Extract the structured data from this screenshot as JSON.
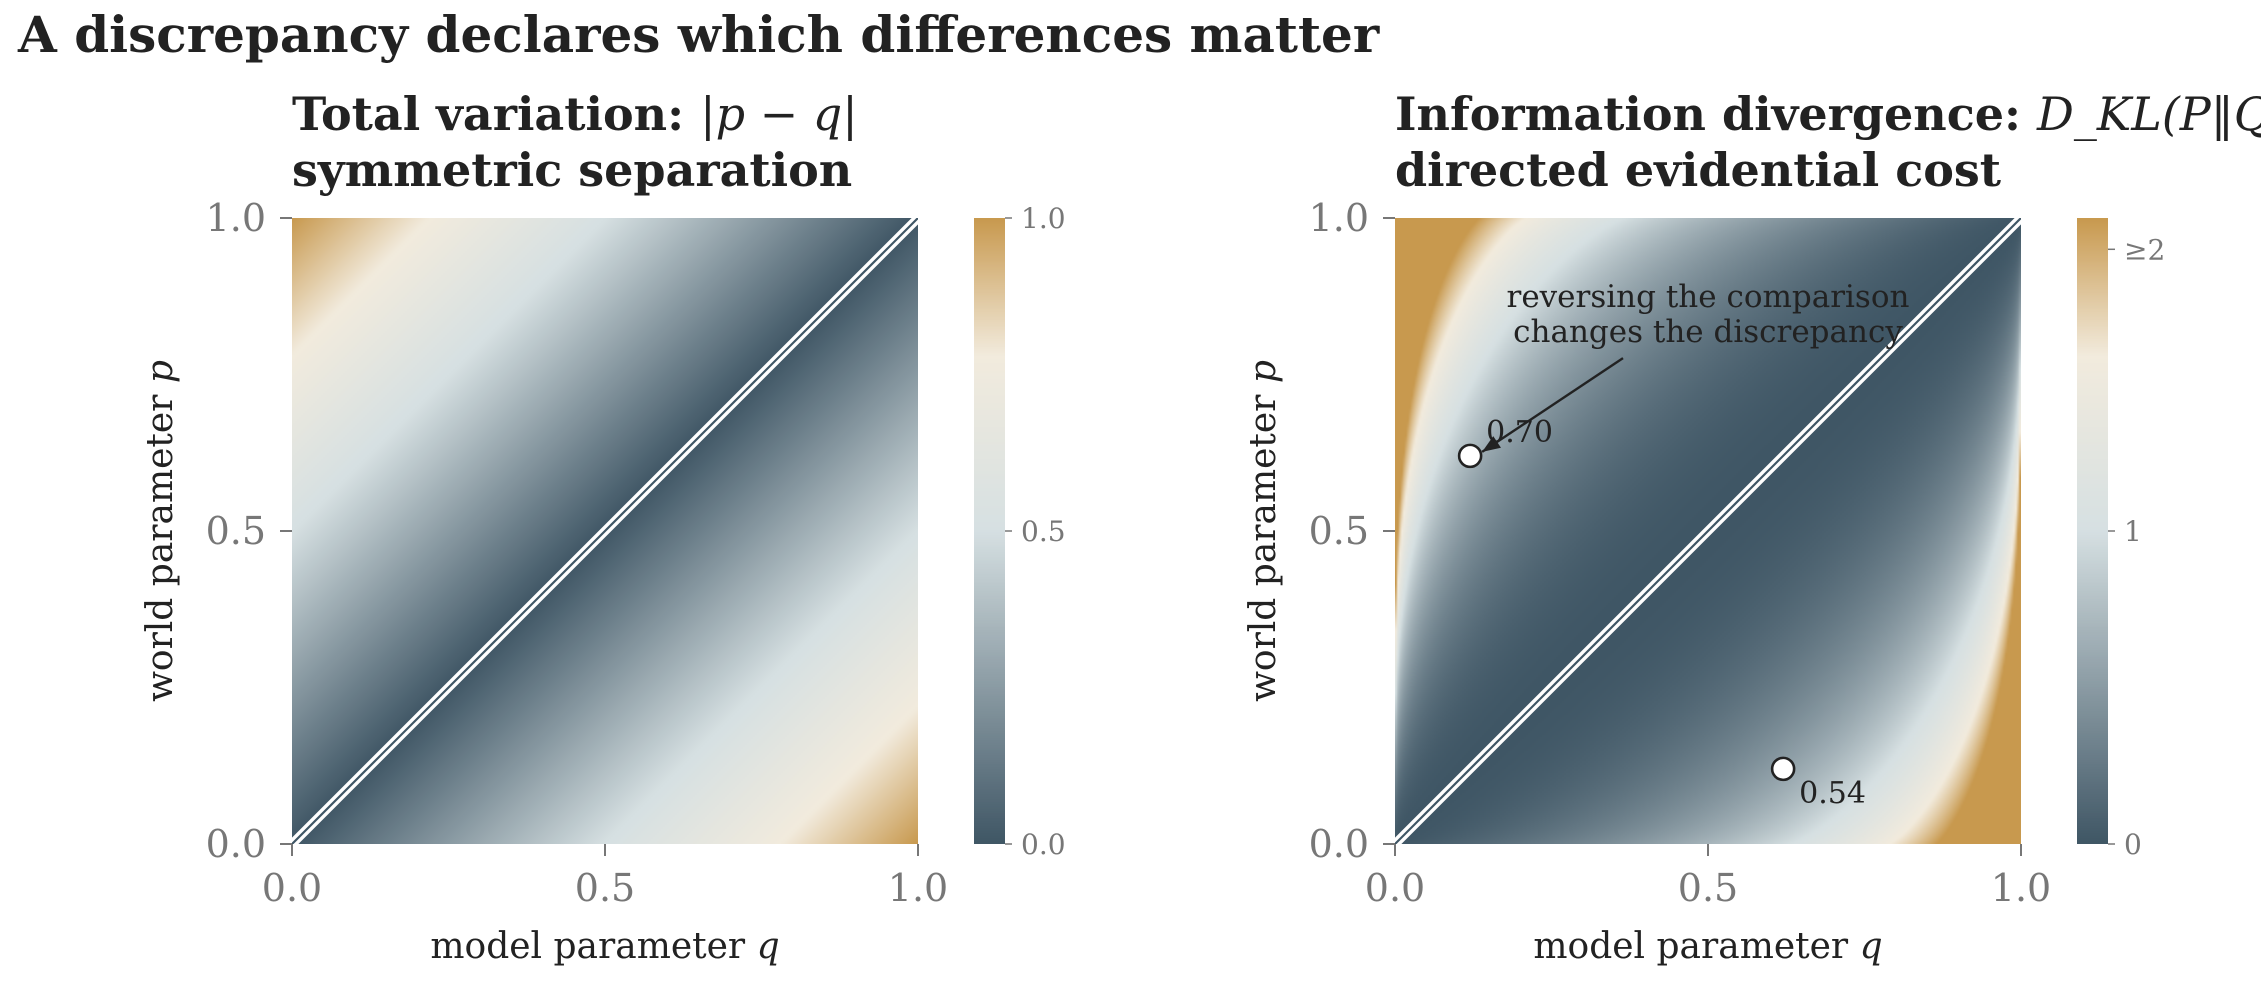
{
  "figure": {
    "suptitle": "A discrepancy declares which differences matter"
  },
  "colors": {
    "low": "#3f5665",
    "mid": "#d6e0e2",
    "near_high": "#f2ebdd",
    "high": "#c8994e",
    "text": "#222222",
    "tick": "#777777"
  },
  "chart_data": [
    {
      "type": "heatmap",
      "title_bold": "Total variation: ",
      "title_math": "|p − q|",
      "subtitle": "symmetric separation",
      "xlabel": "model parameter",
      "xlabel_var": "q",
      "ylabel": "world parameter",
      "ylabel_var": "p",
      "x_range": [
        0,
        1
      ],
      "y_range": [
        0,
        1
      ],
      "x_ticks": [
        "0.0",
        "0.5",
        "1.0"
      ],
      "y_ticks": [
        "0.0",
        "0.5",
        "1.0"
      ],
      "function": "abs(p - q)",
      "color_range": [
        0,
        1
      ],
      "colorbar_ticks": [
        {
          "value": 0,
          "label": "0.0"
        },
        {
          "value": 0.5,
          "label": "0.5"
        },
        {
          "value": 1,
          "label": "1.0"
        }
      ],
      "diagonal_line": true,
      "points": [],
      "annotation": null
    },
    {
      "type": "heatmap",
      "title_bold": "Information divergence: ",
      "title_math": "D_KL(P‖Q)",
      "subtitle": "directed evidential cost",
      "xlabel": "model parameter",
      "xlabel_var": "q",
      "ylabel": "world parameter",
      "ylabel_var": "p",
      "x_range": [
        0,
        1
      ],
      "y_range": [
        0,
        1
      ],
      "x_ticks": [
        "0.0",
        "0.5",
        "1.0"
      ],
      "y_ticks": [
        "0.0",
        "0.5",
        "1.0"
      ],
      "function": "p*ln(p/q) + (1-p)*ln((1-p)/(1-q))",
      "color_range": [
        0,
        2
      ],
      "colorbar_ticks": [
        {
          "value": 0,
          "label": "0"
        },
        {
          "value": 1,
          "label": "1"
        },
        {
          "value": 1.9,
          "label": "≥2"
        }
      ],
      "diagonal_line": true,
      "points": [
        {
          "q": 0.12,
          "p": 0.62,
          "label": "0.70"
        },
        {
          "q": 0.62,
          "p": 0.12,
          "label": "0.54"
        }
      ],
      "annotation": {
        "lines": [
          "reversing the comparison",
          "changes the discrepancy"
        ],
        "q": 0.5,
        "p": 0.84
      }
    }
  ]
}
